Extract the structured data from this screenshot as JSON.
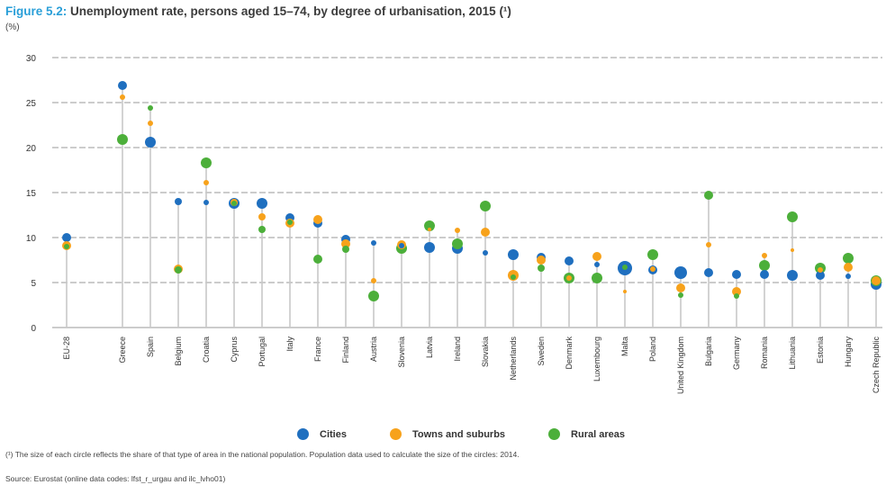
{
  "header": {
    "figure_label": "Figure 5.2:",
    "title_text": "Unemployment rate, persons aged 15–74, by degree of urbanisation, 2015 (¹)",
    "unit": "(%)"
  },
  "legend": {
    "items": [
      {
        "label": "Cities",
        "color": "#1f6fbf"
      },
      {
        "label": "Towns and suburbs",
        "color": "#f7a21b"
      },
      {
        "label": "Rural areas",
        "color": "#4caf3a"
      }
    ]
  },
  "footnote": "(¹) The size of each circle reflects the share of that type of area in the national population. Population data used to calculate the size of the circles: 2014.",
  "source": "Source: Eurostat (online data codes: lfst_r_urgau and ilc_lvho01)",
  "colors": {
    "cities": "#1f6fbf",
    "towns": "#f7a21b",
    "rural": "#4caf3a",
    "stem": "#c8c8c8",
    "grid": "#9a9a9a",
    "title_accent": "#2a9fd8"
  },
  "chart_data": {
    "type": "scatter",
    "title": "Unemployment rate, persons aged 15–74, by degree of urbanisation, 2015 (¹)",
    "ylabel": "(%)",
    "ylim": [
      0,
      30
    ],
    "yticks": [
      0,
      5,
      10,
      15,
      20,
      25,
      30
    ],
    "grid": true,
    "legend_position": "bottom",
    "categories": [
      "EU-28",
      "Greece",
      "Spain",
      "Belgium",
      "Croatia",
      "Cyprus",
      "Portugal",
      "Italy",
      "France",
      "Finland",
      "Austria",
      "Slovenia",
      "Latvia",
      "Ireland",
      "Slovakia",
      "Netherlands",
      "Sweden",
      "Denmark",
      "Luxembourg",
      "Malta",
      "Poland",
      "United Kingdom",
      "Bulgaria",
      "Germany",
      "Romania",
      "Lithuania",
      "Estonia",
      "Hungary",
      "Czech Republic"
    ],
    "series": [
      {
        "name": "Cities",
        "values": [
          10.0,
          26.9,
          20.6,
          14.0,
          13.9,
          13.8,
          13.8,
          12.2,
          11.6,
          9.8,
          9.4,
          9.1,
          8.9,
          8.8,
          8.3,
          8.1,
          7.8,
          7.4,
          7.0,
          6.6,
          6.4,
          6.1,
          6.1,
          5.9,
          5.9,
          5.8,
          5.8,
          5.7,
          4.8
        ]
      },
      {
        "name": "Towns and suburbs",
        "values": [
          9.1,
          25.6,
          22.7,
          6.5,
          16.1,
          13.9,
          12.3,
          11.6,
          12.0,
          9.3,
          5.2,
          9.2,
          10.9,
          10.8,
          10.6,
          5.8,
          7.5,
          5.5,
          7.9,
          4.0,
          6.5,
          4.4,
          9.2,
          4.0,
          8.0,
          8.6,
          6.4,
          6.7,
          5.2
        ]
      },
      {
        "name": "Rural areas",
        "values": [
          9.0,
          20.9,
          24.4,
          6.4,
          18.3,
          13.8,
          10.9,
          11.7,
          7.6,
          8.7,
          3.5,
          8.8,
          11.3,
          9.3,
          13.5,
          5.6,
          6.6,
          5.5,
          5.5,
          6.7,
          8.1,
          3.6,
          14.7,
          3.5,
          6.9,
          12.3,
          6.6,
          7.7,
          5.2
        ]
      }
    ],
    "circle_sizes": {
      "Cities": [
        5,
        5,
        6,
        4,
        3,
        6,
        6,
        5,
        5,
        5,
        3,
        3,
        6,
        6,
        3,
        6,
        5,
        5,
        3,
        8,
        5,
        7,
        5,
        5,
        5,
        6,
        5,
        3,
        6
      ],
      "Towns and suburbs": [
        5,
        3,
        3,
        5,
        3,
        4,
        4,
        5,
        5,
        5,
        3,
        5,
        2,
        3,
        5,
        6,
        5,
        3,
        5,
        2,
        3,
        5,
        3,
        5,
        3,
        2,
        3,
        5,
        5
      ],
      "Rural areas": [
        3,
        6,
        3,
        4,
        6,
        3,
        4,
        3,
        5,
        4,
        6,
        6,
        6,
        6,
        6,
        3,
        4,
        6,
        6,
        3,
        6,
        3,
        5,
        3,
        6,
        6,
        6,
        6,
        6
      ]
    }
  }
}
